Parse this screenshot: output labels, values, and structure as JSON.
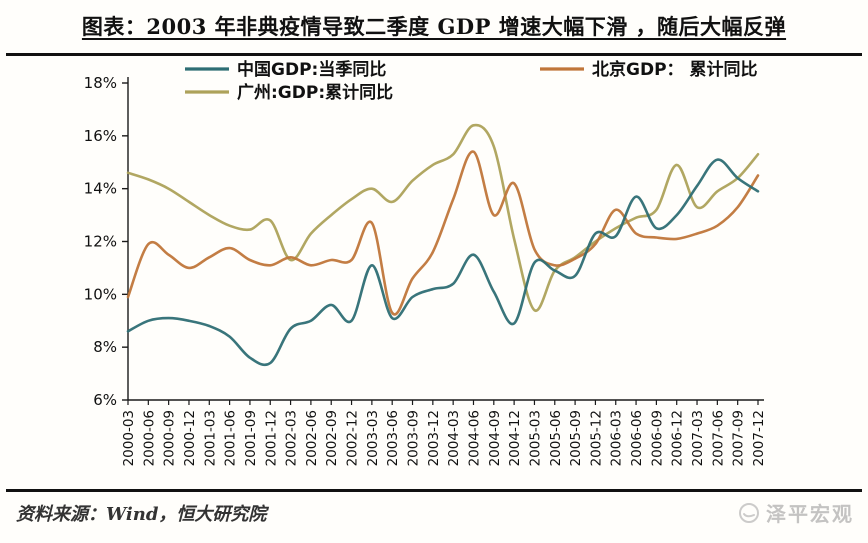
{
  "title": "图表：2003 年非典疫情导致二季度 GDP 增速大幅下滑 ，随后大幅反弹",
  "source": "资料来源：Wind，恒大研究院",
  "watermark": "泽平宏观",
  "axis_color": "#1a1a1a",
  "y_tick_labels": [
    "18%",
    "16%",
    "14%",
    "12%",
    "10%",
    "8%",
    "6%"
  ],
  "chart_data": {
    "type": "line",
    "title": "2003年非典疫情导致二季度GDP增速大幅下滑，随后大幅反弹",
    "xlabel": "",
    "ylabel": "",
    "ylim": [
      6,
      18
    ],
    "y_tick_step": 2,
    "grid": false,
    "legend_position": "top",
    "categories": [
      "2000-03",
      "2000-06",
      "2000-09",
      "2000-12",
      "2001-03",
      "2001-06",
      "2001-09",
      "2001-12",
      "2002-03",
      "2002-06",
      "2002-09",
      "2002-12",
      "2003-03",
      "2003-06",
      "2003-09",
      "2003-12",
      "2004-03",
      "2004-06",
      "2004-09",
      "2004-12",
      "2005-03",
      "2005-06",
      "2005-09",
      "2005-12",
      "2006-03",
      "2006-06",
      "2006-09",
      "2006-12",
      "2007-03",
      "2007-06",
      "2007-09",
      "2007-12"
    ],
    "series": [
      {
        "name": "中国GDP:当季同比",
        "color": "#2e6e74",
        "values": [
          8.6,
          9.0,
          9.1,
          9.0,
          8.8,
          8.4,
          7.6,
          7.4,
          8.7,
          9.0,
          9.6,
          9.0,
          11.1,
          9.1,
          9.9,
          10.2,
          10.4,
          11.5,
          10.1,
          8.9,
          11.2,
          10.9,
          10.7,
          12.3,
          12.2,
          13.7,
          12.5,
          13.0,
          14.1,
          15.1,
          14.4,
          13.9
        ]
      },
      {
        "name": "北京GDP： 累计同比",
        "color": "#c0763a",
        "values": [
          9.9,
          11.9,
          11.5,
          11.0,
          11.4,
          11.75,
          11.3,
          11.1,
          11.4,
          11.1,
          11.3,
          11.3,
          12.7,
          9.3,
          10.6,
          11.6,
          13.6,
          15.4,
          13.0,
          14.2,
          11.7,
          11.1,
          11.35,
          11.9,
          13.2,
          12.3,
          12.15,
          12.1,
          12.3,
          12.6,
          13.3,
          14.5
        ]
      },
      {
        "name": "广州:GDP:累计同比",
        "color": "#ada25a",
        "values": [
          14.6,
          14.35,
          14.0,
          13.5,
          13.0,
          12.6,
          12.45,
          12.8,
          11.3,
          12.3,
          13.0,
          13.6,
          14.0,
          13.5,
          14.3,
          14.9,
          15.3,
          16.4,
          15.6,
          12.1,
          9.4,
          10.9,
          11.4,
          12.0,
          12.5,
          12.9,
          13.2,
          14.9,
          13.3,
          13.9,
          14.4,
          15.3
        ]
      }
    ]
  }
}
